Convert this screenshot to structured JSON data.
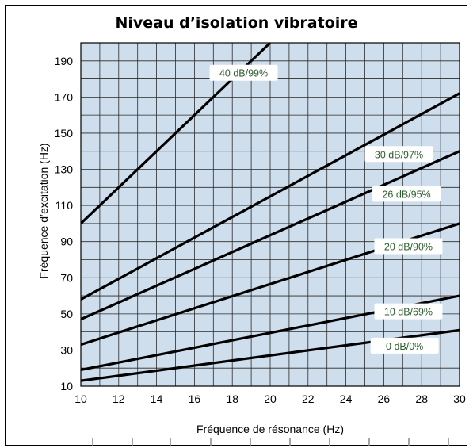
{
  "chart_data": {
    "type": "line",
    "title": "Niveau d’isolation vibratoire",
    "xlabel": "Fréquence de résonance (Hz)",
    "ylabel": "Fréquence d’excitation (Hz)",
    "xlim": [
      10,
      30
    ],
    "ylim": [
      10,
      200
    ],
    "x_ticks": [
      "10",
      "12",
      "14",
      "16",
      "18",
      "20",
      "22",
      "24",
      "26",
      "28",
      "30"
    ],
    "y_ticks": [
      "10",
      "30",
      "50",
      "70",
      "90",
      "110",
      "130",
      "150",
      "170",
      "190"
    ],
    "grid": true,
    "background_color": "#cfdeec",
    "line_color": "#000000",
    "label_color": "#2e5e2e",
    "series": [
      {
        "name": "40 dB/99%",
        "x": [
          10,
          20
        ],
        "y": [
          100,
          200
        ],
        "label_at": [
          18.6,
          183
        ]
      },
      {
        "name": "30 dB/97%",
        "x": [
          10,
          30
        ],
        "y": [
          58,
          172
        ],
        "label_at": [
          26.8,
          138
        ]
      },
      {
        "name": "26 dB/95%",
        "x": [
          10,
          30
        ],
        "y": [
          47,
          140
        ],
        "label_at": [
          27.2,
          116
        ]
      },
      {
        "name": "20 dB/90%",
        "x": [
          10,
          30
        ],
        "y": [
          33,
          100
        ],
        "label_at": [
          27.3,
          87
        ]
      },
      {
        "name": "10 dB/69%",
        "x": [
          10,
          30
        ],
        "y": [
          19,
          60
        ],
        "label_at": [
          27.3,
          51
        ]
      },
      {
        "name": "0   dB/0%",
        "x": [
          10,
          30
        ],
        "y": [
          13,
          41
        ],
        "label_at": [
          27.1,
          32
        ]
      }
    ]
  }
}
